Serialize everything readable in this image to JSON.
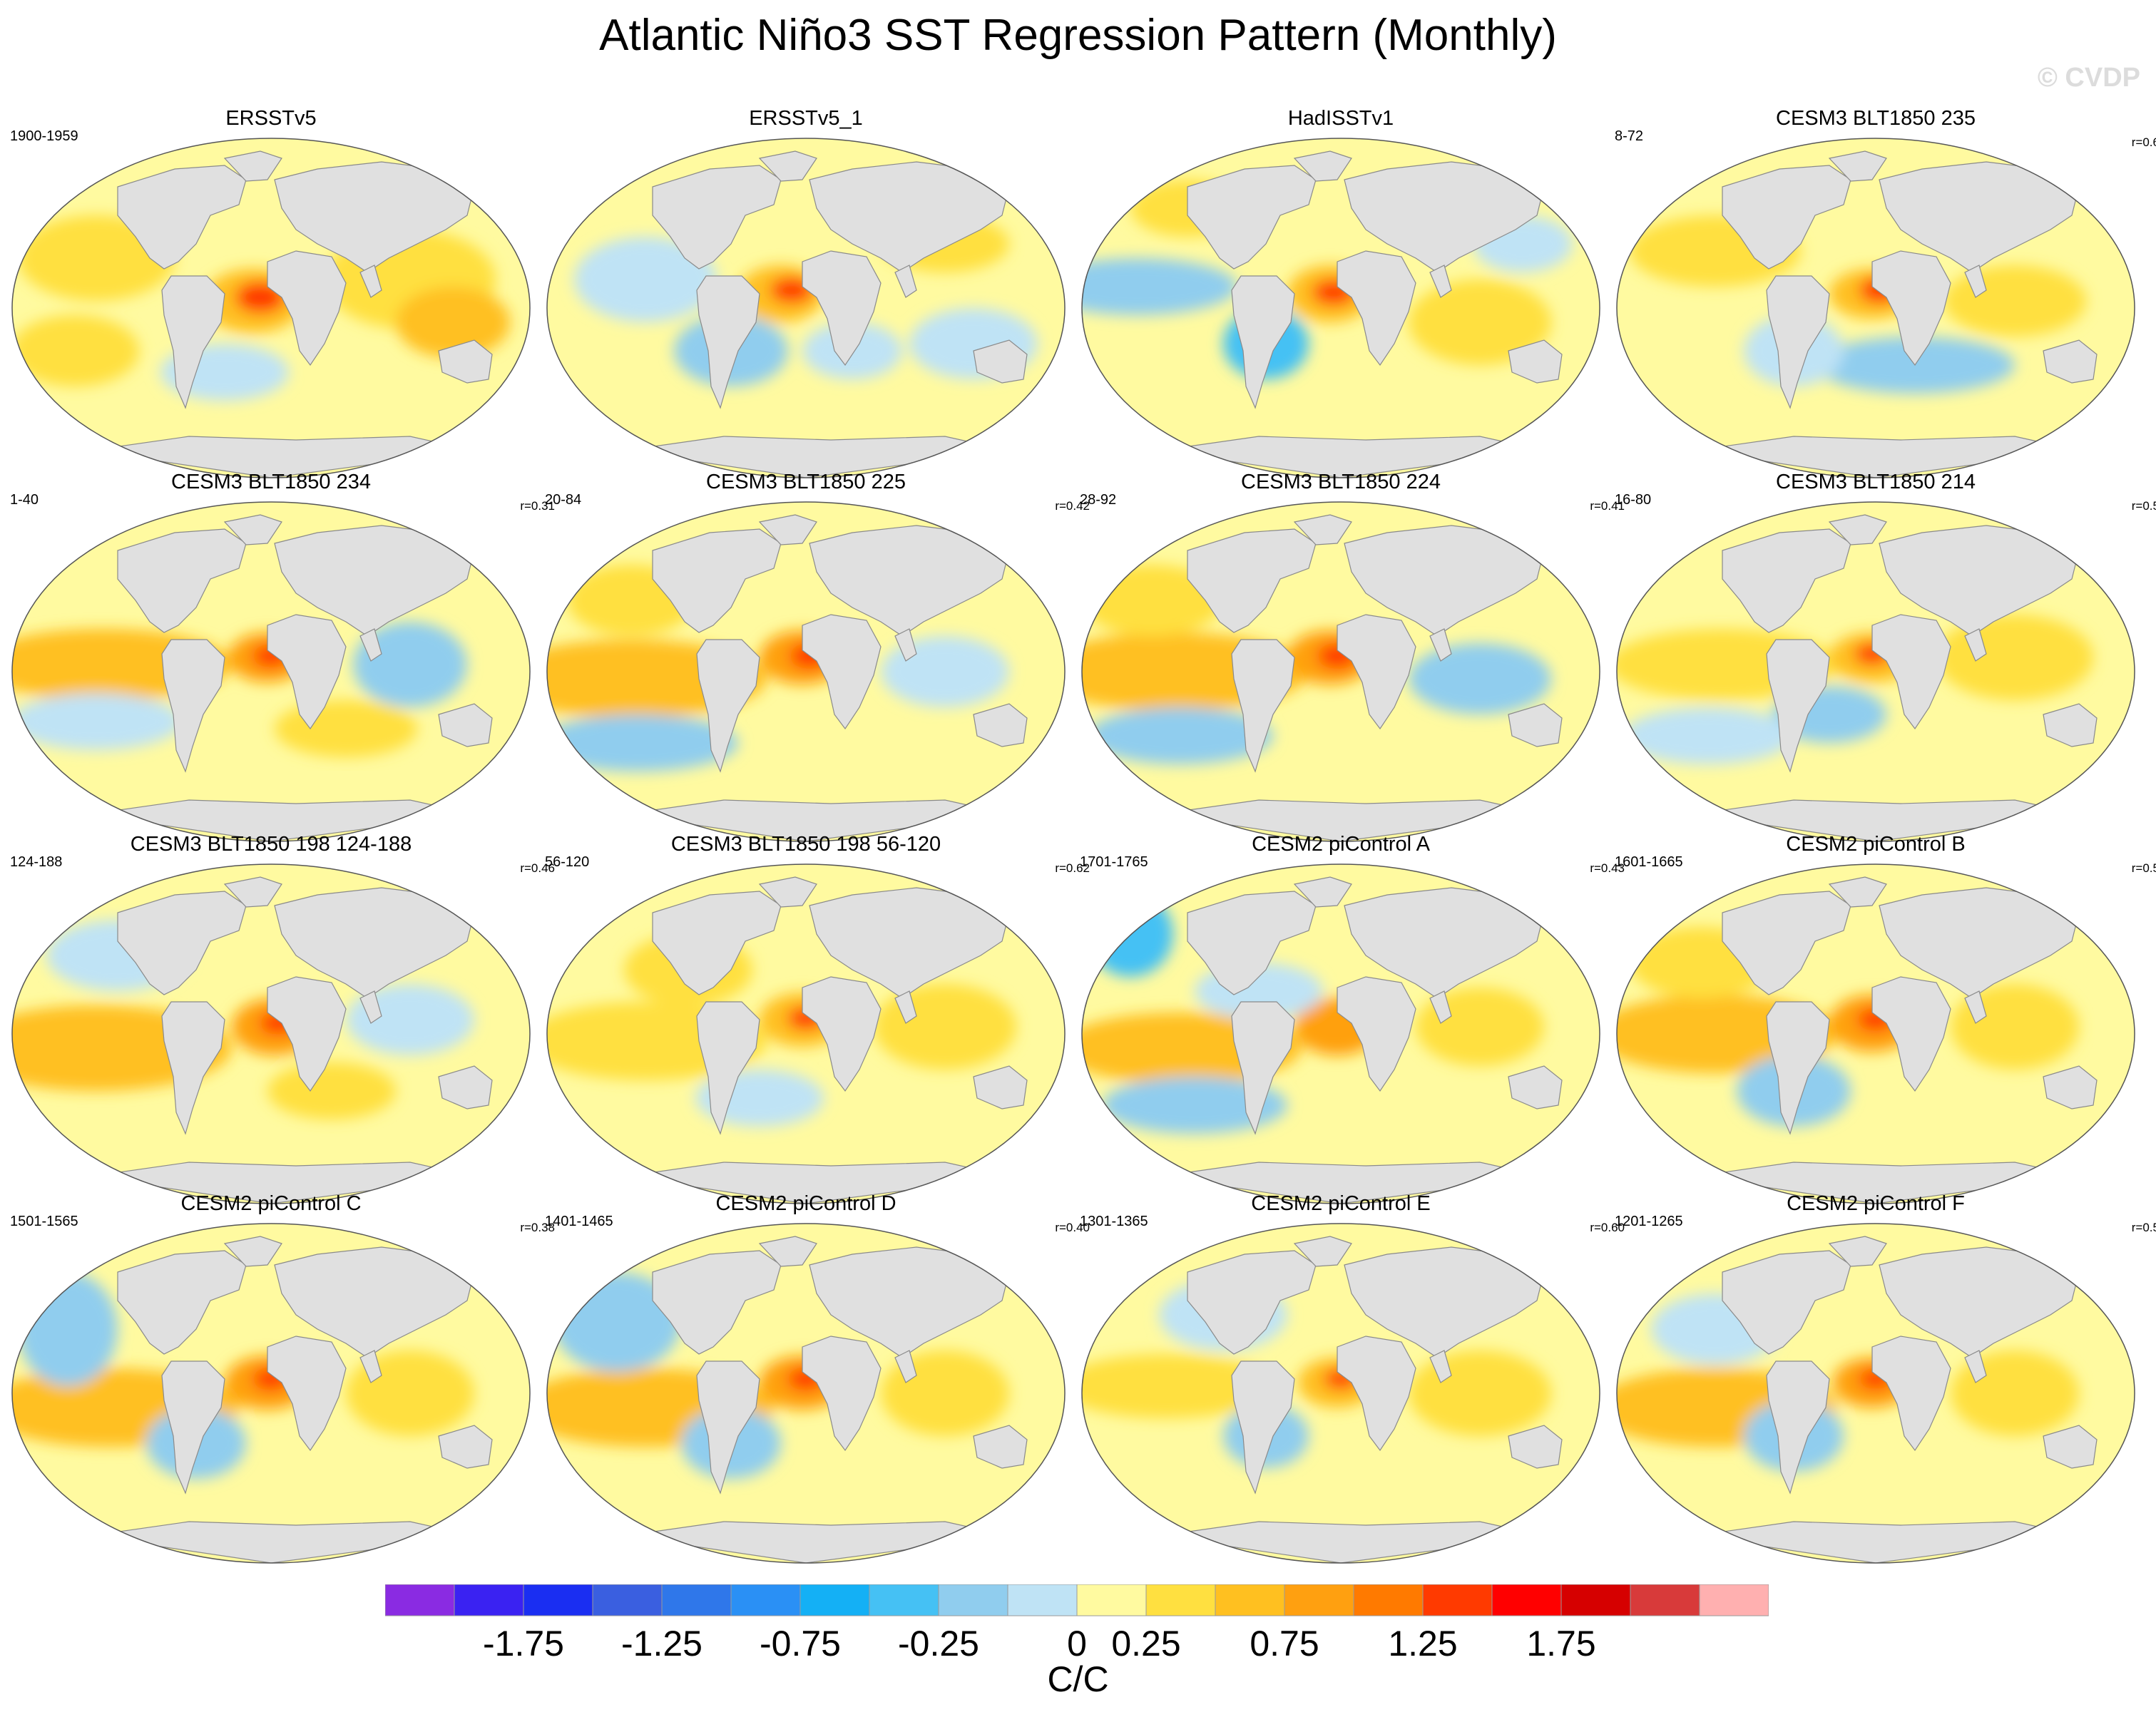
{
  "title": "Atlantic Niño3 SST Regression Pattern (Monthly)",
  "watermark": "© CVDP",
  "panels": [
    {
      "title": "ERSSTv5",
      "period": "1900-1959",
      "corr": ""
    },
    {
      "title": "ERSSTv5_1",
      "period": "",
      "corr": ""
    },
    {
      "title": "HadISSTv1",
      "period": "",
      "corr": ""
    },
    {
      "title": "CESM3 BLT1850 235",
      "period": "8-72",
      "corr": "r=0.6"
    },
    {
      "title": "CESM3 BLT1850 234",
      "period": "1-40",
      "corr": "r=0.31"
    },
    {
      "title": "CESM3 BLT1850 225",
      "period": "20-84",
      "corr": "r=0.42"
    },
    {
      "title": "CESM3 BLT1850 224",
      "period": "28-92",
      "corr": "r=0.41"
    },
    {
      "title": "CESM3 BLT1850 214",
      "period": "16-80",
      "corr": "r=0.5"
    },
    {
      "title": "CESM3 BLT1850 198 124-188",
      "period": "124-188",
      "corr": "r=0.46"
    },
    {
      "title": "CESM3 BLT1850 198 56-120",
      "period": "56-120",
      "corr": "r=0.62"
    },
    {
      "title": "CESM2 piControl A",
      "period": "1701-1765",
      "corr": "r=0.43"
    },
    {
      "title": "CESM2 piControl B",
      "period": "1601-1665",
      "corr": "r=0.5"
    },
    {
      "title": "CESM2 piControl C",
      "period": "1501-1565",
      "corr": "r=0.38"
    },
    {
      "title": "CESM2 piControl D",
      "period": "1401-1465",
      "corr": "r=0.40"
    },
    {
      "title": "CESM2 piControl E",
      "period": "1301-1365",
      "corr": "r=0.60"
    },
    {
      "title": "CESM2 piControl F",
      "period": "1201-1265",
      "corr": "r=0.5"
    }
  ],
  "colorbar": {
    "title": "C/C",
    "colors": [
      "#8a2be2",
      "#3a22f2",
      "#1a2ef2",
      "#3a5fe0",
      "#2f77ea",
      "#2a90f5",
      "#14b0f5",
      "#45c1f4",
      "#90cdee",
      "#bfe3f5",
      "#fffaa0",
      "#ffe040",
      "#ffc020",
      "#ffa010",
      "#ff7a00",
      "#ff3a00",
      "#ff0000",
      "#d60000",
      "#d83a3a",
      "#ffb0b0"
    ],
    "tick_labels": [
      "-1.75",
      "-1.25",
      "-0.75",
      "-0.25",
      "0",
      "0.25",
      "0.75",
      "1.25",
      "1.75"
    ]
  },
  "map_colors": {
    "land": "#e0e0e0",
    "ocean_neutral": "#fffaa0",
    "warm_weak": "#ffe040",
    "warm_mid": "#ffc020",
    "warm_strong": "#ffa010",
    "warm_core": "#ff3a00",
    "cool_weak": "#bfe3f5",
    "cool_mid": "#90cdee",
    "cool_strong": "#45c1f4"
  }
}
